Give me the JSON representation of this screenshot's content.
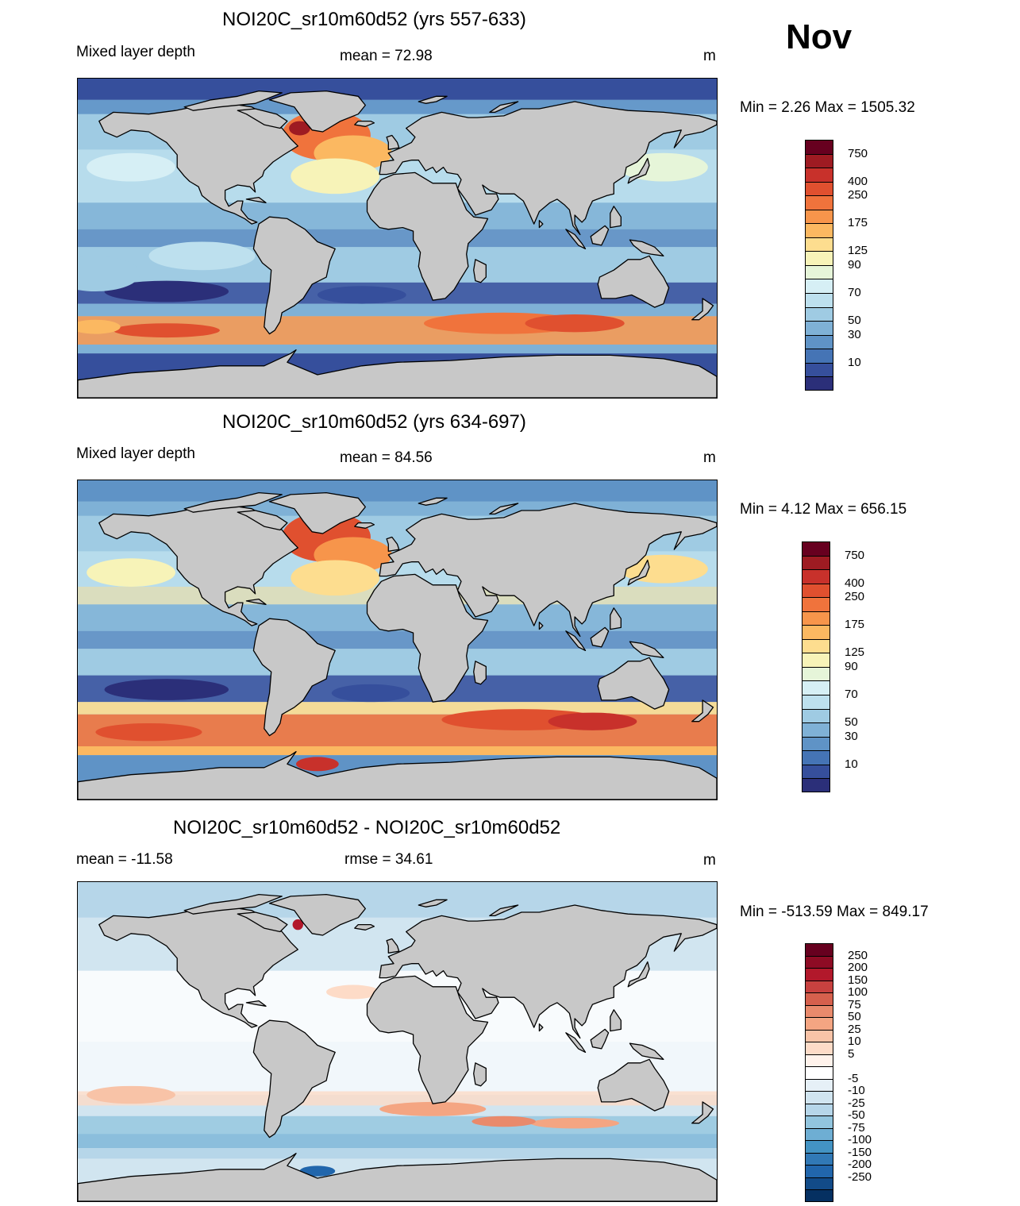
{
  "month": "Nov",
  "panels": [
    {
      "title": "NOI20C_sr10m60d52 (yrs 557-633)",
      "left": "Mixed layer depth",
      "center": "mean =  72.98",
      "right": "m",
      "minmax": "Min =    2.26 Max = 1505.32"
    },
    {
      "title": "NOI20C_sr10m60d52 (yrs 634-697)",
      "left": "Mixed layer depth",
      "center": "mean =  84.56",
      "right": "m",
      "minmax": "Min =    4.12 Max = 656.15"
    },
    {
      "title": "NOI20C_sr10m60d52 - NOI20C_sr10m60d52",
      "left": "mean = -11.58",
      "center": "rmse =  34.61",
      "right": "m",
      "minmax": "Min = -513.59 Max = 849.17"
    }
  ],
  "colorbar_abs": {
    "colors": [
      "#67001f",
      "#9e1b22",
      "#c8312b",
      "#e0502f",
      "#f0733c",
      "#f7954b",
      "#fbb861",
      "#fddd8f",
      "#f7f3b8",
      "#e6f5d9",
      "#d6eff5",
      "#bde0ee",
      "#9fcbe3",
      "#7fb1d6",
      "#5f93c6",
      "#4574b5",
      "#364f9c",
      "#2b2f79"
    ],
    "labels": [
      "750",
      "400",
      "250",
      "175",
      "125",
      "90",
      "70",
      "50",
      "30",
      "10"
    ]
  },
  "colorbar_diff": {
    "colors": [
      "#67001f",
      "#8e0b24",
      "#b2182b",
      "#c8413f",
      "#d6604d",
      "#e98a6c",
      "#f4a582",
      "#f8c3a7",
      "#fddbc7",
      "#fff2eb",
      "#ffffff",
      "#e6f0f7",
      "#d1e5f0",
      "#b6d6e9",
      "#92c5de",
      "#6eaed3",
      "#4393c3",
      "#3179b6",
      "#2166ac",
      "#124b88",
      "#053061"
    ],
    "labels": [
      "250",
      "200",
      "150",
      "100",
      "75",
      "50",
      "25",
      "10",
      "5",
      "-5",
      "-10",
      "-25",
      "-50",
      "-75",
      "-100",
      "-150",
      "-200",
      "-250"
    ]
  }
}
